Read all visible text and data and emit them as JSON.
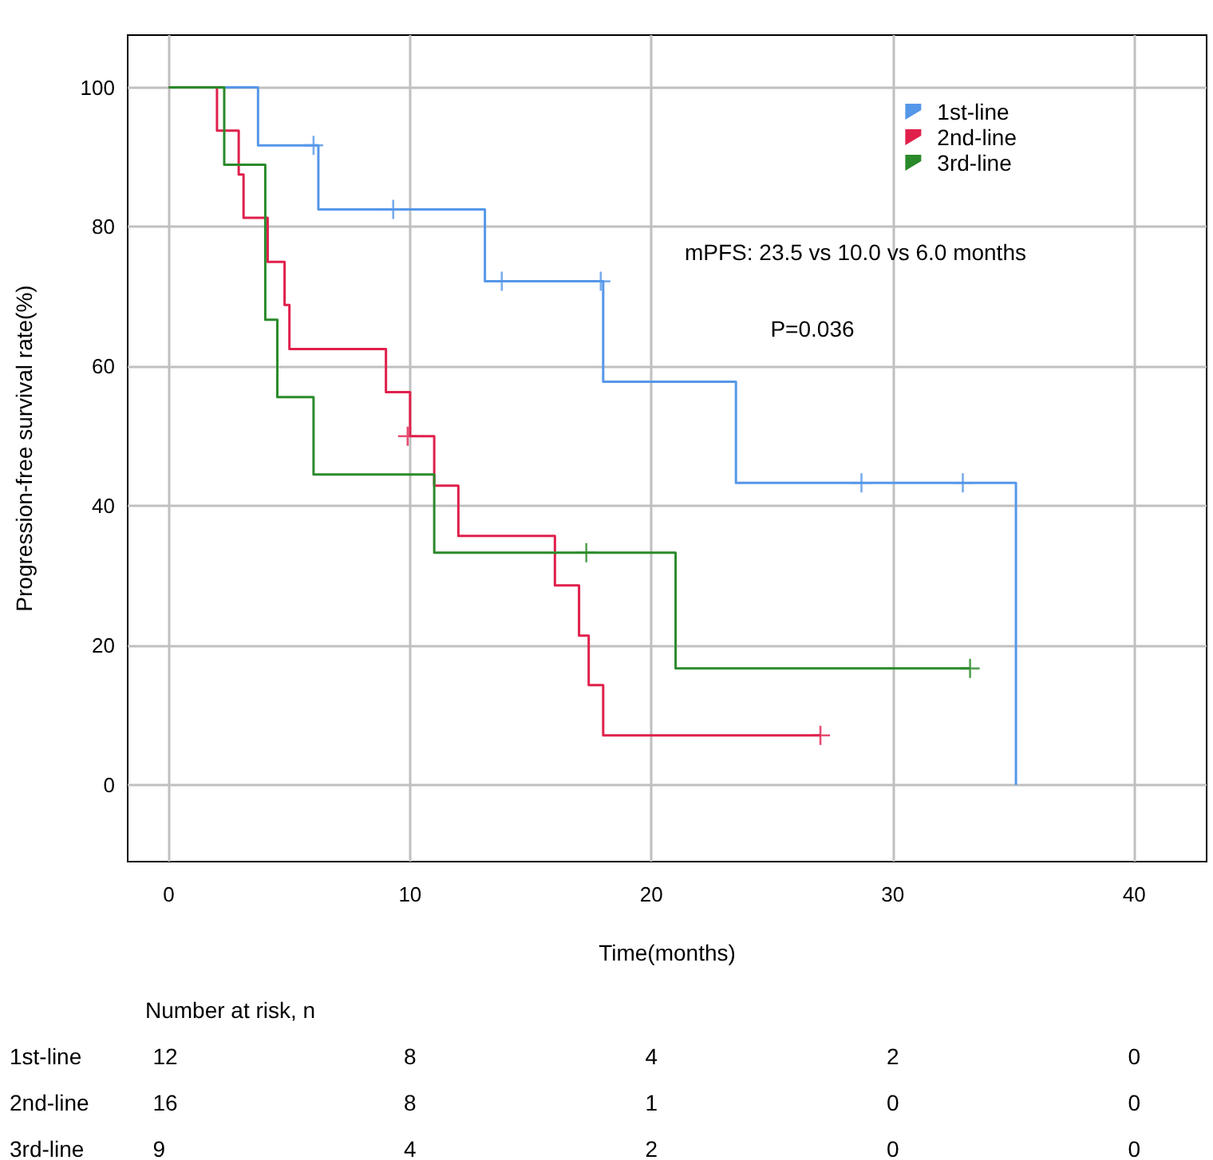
{
  "chart_data": {
    "type": "step",
    "xlabel": "Time(months)",
    "ylabel": "Progression-free survival rate(%)",
    "xlim": [
      -1.7,
      43
    ],
    "xticks": [
      0,
      10,
      20,
      30,
      40
    ],
    "ylim": [
      -11,
      107.5
    ],
    "yticks": [
      0,
      20,
      40,
      60,
      80,
      100
    ],
    "grid": true,
    "legend": "top right",
    "series": [
      {
        "name": "1st-line",
        "color": "#5597e8",
        "x": [
          0,
          3.7,
          6.2,
          13.1,
          18,
          23.5,
          35.1
        ],
        "values": [
          100,
          91.7,
          82.5,
          72.2,
          57.8,
          43.3,
          0
        ]
      },
      {
        "name": "2nd-line",
        "color": "#e0204c",
        "x": [
          0,
          2,
          2.9,
          3.1,
          4.1,
          4.8,
          5,
          9,
          10,
          11,
          12,
          16,
          17,
          17.4,
          18,
          27
        ],
        "values": [
          100,
          93.8,
          87.5,
          81.3,
          75,
          68.8,
          62.5,
          56.3,
          50,
          42.9,
          35.7,
          28.6,
          21.4,
          14.3,
          7.1,
          7.1
        ]
      },
      {
        "name": "3rd-line",
        "color": "#2a8a2a",
        "x": [
          0,
          2.3,
          4,
          4.5,
          6,
          11,
          21,
          33.2
        ],
        "values": [
          100,
          88.9,
          66.7,
          55.6,
          44.5,
          33.3,
          16.7,
          16.7
        ]
      },
      {
        "type": "scatter",
        "marker": "cross",
        "color": "#5597e8",
        "x": [
          6,
          9.3,
          13.8,
          17.9,
          28.7,
          32.9
        ],
        "values": [
          91.7,
          82.5,
          72.2,
          72.2,
          43.3,
          43.3
        ]
      },
      {
        "type": "scatter",
        "marker": "cross",
        "color": "#e0204c",
        "x": [
          9.9,
          27
        ],
        "values": [
          50,
          7.1
        ]
      },
      {
        "type": "scatter",
        "marker": "cross",
        "color": "#2a8a2a",
        "x": [
          17.3,
          33.2
        ],
        "values": [
          33.3,
          16.7
        ]
      }
    ],
    "annotations": [
      "mPFS: 23.5 vs 10.0 vs 6.0 months",
      "P=0.036",
      "Number at risk, n",
      "1st-line",
      "12",
      "8",
      "4",
      "2",
      "0",
      "2nd-line",
      "16",
      "8",
      "1",
      "0",
      "0",
      "3rd-line",
      "9",
      "4",
      "2",
      "0",
      "0"
    ]
  }
}
